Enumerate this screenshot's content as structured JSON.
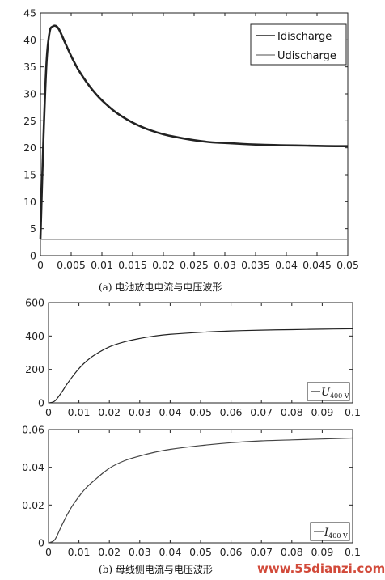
{
  "captions": {
    "a": "(a)  电池放电电流与电压波形",
    "b": "(b)  母线侧电流与电压波形"
  },
  "watermark": "www.55dianzi.com",
  "chart_data": [
    {
      "type": "line",
      "xlim": [
        0,
        0.05
      ],
      "ylim": [
        0,
        45
      ],
      "xticks": [
        0,
        0.005,
        0.01,
        0.015,
        0.02,
        0.025,
        0.03,
        0.035,
        0.04,
        0.045,
        0.05
      ],
      "xtick_labels": [
        "0",
        "0.005",
        "0.01",
        "0.015",
        "0.02",
        "0.025",
        "0.03",
        "0.035",
        "0.04",
        "0.045",
        "0.05"
      ],
      "yticks": [
        0,
        5,
        10,
        15,
        20,
        25,
        30,
        35,
        40,
        45
      ],
      "ytick_labels": [
        "0",
        "5",
        "10",
        "15",
        "20",
        "25",
        "30",
        "35",
        "40",
        "45"
      ],
      "legend_position": "top-right",
      "grid": false,
      "series": [
        {
          "name": "Idischarge",
          "color": "#222222",
          "x": [
            0,
            0.0005,
            0.001,
            0.0015,
            0.002,
            0.0025,
            0.003,
            0.0035,
            0.004,
            0.005,
            0.006,
            0.007,
            0.008,
            0.009,
            0.01,
            0.012,
            0.014,
            0.016,
            0.018,
            0.02,
            0.022,
            0.025,
            0.028,
            0.03,
            0.033,
            0.035,
            0.038,
            0.04,
            0.043,
            0.045,
            0.048,
            0.05
          ],
          "y": [
            3,
            22,
            36,
            41.5,
            42.5,
            42.6,
            42,
            40.8,
            39.5,
            37,
            34.8,
            33,
            31.4,
            30,
            28.8,
            26.8,
            25.3,
            24.1,
            23.2,
            22.5,
            22,
            21.4,
            21,
            20.9,
            20.7,
            20.6,
            20.5,
            20.45,
            20.4,
            20.35,
            20.3,
            20.3
          ]
        },
        {
          "name": "Udischarge",
          "color": "#888888",
          "x": [
            0,
            0.05
          ],
          "y": [
            3,
            3
          ]
        }
      ]
    },
    {
      "type": "line",
      "xlim": [
        0,
        0.1
      ],
      "ylim": [
        0,
        600
      ],
      "xticks": [
        0,
        0.01,
        0.02,
        0.03,
        0.04,
        0.05,
        0.06,
        0.07,
        0.08,
        0.09,
        0.1
      ],
      "xtick_labels": [
        "0",
        "0.01",
        "0.02",
        "0.03",
        "0.04",
        "0.05",
        "0.06",
        "0.07",
        "0.08",
        "0.09",
        "0.1"
      ],
      "yticks": [
        0,
        200,
        400,
        600
      ],
      "ytick_labels": [
        "0",
        "200",
        "400",
        "600"
      ],
      "legend_position": "bottom-right",
      "grid": false,
      "series": [
        {
          "name": "U400 V",
          "name_main": "U",
          "name_sub": "400 V",
          "color": "#222222",
          "x": [
            0,
            0.002,
            0.004,
            0.006,
            0.008,
            0.01,
            0.012,
            0.015,
            0.02,
            0.025,
            0.03,
            0.035,
            0.04,
            0.05,
            0.06,
            0.07,
            0.08,
            0.09,
            0.1
          ],
          "y": [
            0,
            10,
            55,
            110,
            160,
            205,
            242,
            285,
            335,
            365,
            385,
            400,
            410,
            422,
            430,
            435,
            438,
            441,
            443
          ]
        }
      ]
    },
    {
      "type": "line",
      "xlim": [
        0,
        0.1
      ],
      "ylim": [
        0,
        0.06
      ],
      "xticks": [
        0,
        0.01,
        0.02,
        0.03,
        0.04,
        0.05,
        0.06,
        0.07,
        0.08,
        0.09,
        0.1
      ],
      "xtick_labels": [
        "0",
        "0.01",
        "0.02",
        "0.03",
        "0.04",
        "0.05",
        "0.06",
        "0.07",
        "0.08",
        "0.09",
        "0.1"
      ],
      "yticks": [
        0,
        0.02,
        0.04,
        0.06
      ],
      "ytick_labels": [
        "0",
        "0.02",
        "0.04",
        "0.06"
      ],
      "legend_position": "bottom-right",
      "grid": false,
      "series": [
        {
          "name": "I400 V",
          "name_main": "I",
          "name_sub": "400 V",
          "color": "#444444",
          "x": [
            0,
            0.002,
            0.004,
            0.006,
            0.008,
            0.01,
            0.012,
            0.015,
            0.02,
            0.025,
            0.03,
            0.035,
            0.04,
            0.05,
            0.06,
            0.07,
            0.08,
            0.09,
            0.1
          ],
          "y": [
            0,
            0.0015,
            0.008,
            0.0145,
            0.02,
            0.0245,
            0.0285,
            0.033,
            0.0395,
            0.0435,
            0.046,
            0.048,
            0.0495,
            0.0515,
            0.053,
            0.054,
            0.0545,
            0.055,
            0.0555
          ]
        }
      ]
    }
  ]
}
